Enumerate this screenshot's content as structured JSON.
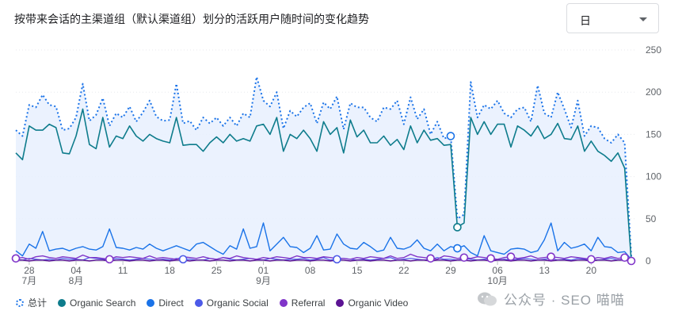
{
  "header": {
    "title": "按带来会话的主渠道组（默认渠道组）划分的活跃用户随时间的变化趋势",
    "granularity": "日"
  },
  "watermark": "公众号 · SEO 喵喵",
  "chart_data": {
    "type": "line",
    "ylim": [
      0,
      250
    ],
    "yticks": [
      "250",
      "200",
      "150",
      "100",
      "50",
      "0"
    ],
    "xticks": [
      {
        "i": 2,
        "label": "28",
        "sub": "7月"
      },
      {
        "i": 9,
        "label": "04",
        "sub": "8月"
      },
      {
        "i": 16,
        "label": "11",
        "sub": ""
      },
      {
        "i": 23,
        "label": "18",
        "sub": ""
      },
      {
        "i": 30,
        "label": "25",
        "sub": ""
      },
      {
        "i": 37,
        "label": "01",
        "sub": "9月"
      },
      {
        "i": 44,
        "label": "08",
        "sub": ""
      },
      {
        "i": 51,
        "label": "15",
        "sub": ""
      },
      {
        "i": 58,
        "label": "22",
        "sub": ""
      },
      {
        "i": 65,
        "label": "29",
        "sub": ""
      },
      {
        "i": 72,
        "label": "06",
        "sub": "10月"
      },
      {
        "i": 79,
        "label": "13",
        "sub": ""
      },
      {
        "i": 86,
        "label": "20",
        "sub": ""
      }
    ],
    "series": [
      {
        "name": "总计",
        "color": "#1a73e8",
        "dashed": true,
        "fill": true,
        "values": [
          155,
          148,
          185,
          182,
          197,
          185,
          183,
          155,
          157,
          170,
          210,
          166,
          173,
          193,
          160,
          175,
          170,
          183,
          165,
          176,
          190,
          171,
          166,
          167,
          210,
          163,
          166,
          155,
          170,
          163,
          170,
          160,
          170,
          160,
          175,
          170,
          218,
          190,
          183,
          200,
          157,
          178,
          171,
          182,
          187,
          163,
          188,
          180,
          195,
          156,
          187,
          182,
          182,
          170,
          165,
          182,
          180,
          190,
          162,
          194,
          168,
          180,
          150,
          165,
          145,
          148,
          50,
          55,
          212,
          170,
          185,
          180,
          190,
          175,
          170,
          180,
          182,
          165,
          208,
          175,
          170,
          200,
          180,
          158,
          190,
          148,
          160,
          158,
          145,
          140,
          150,
          140,
          5
        ]
      },
      {
        "name": "Organic Search",
        "color": "#0e7c8c",
        "width": 1.6,
        "values": [
          128,
          120,
          160,
          155,
          155,
          162,
          158,
          128,
          127,
          148,
          180,
          138,
          133,
          170,
          135,
          148,
          145,
          160,
          148,
          142,
          150,
          145,
          142,
          140,
          170,
          137,
          138,
          138,
          130,
          140,
          147,
          140,
          150,
          142,
          145,
          142,
          160,
          162,
          150,
          170,
          130,
          150,
          145,
          155,
          145,
          130,
          165,
          150,
          158,
          128,
          167,
          147,
          155,
          140,
          140,
          148,
          137,
          144,
          132,
          160,
          140,
          155,
          143,
          145,
          137,
          138,
          40,
          45,
          170,
          150,
          165,
          150,
          162,
          162,
          135,
          160,
          155,
          148,
          160,
          145,
          150,
          163,
          145,
          144,
          160,
          130,
          142,
          130,
          125,
          118,
          128,
          110,
          0
        ]
      },
      {
        "name": "Direct",
        "color": "#1a73e8",
        "width": 1.4,
        "values": [
          12,
          6,
          20,
          15,
          35,
          12,
          14,
          15,
          12,
          15,
          17,
          14,
          13,
          17,
          38,
          16,
          15,
          13,
          16,
          14,
          20,
          15,
          12,
          15,
          18,
          15,
          12,
          20,
          22,
          17,
          12,
          8,
          18,
          14,
          38,
          15,
          17,
          45,
          12,
          20,
          28,
          17,
          16,
          10,
          15,
          30,
          13,
          14,
          32,
          20,
          15,
          14,
          22,
          17,
          11,
          13,
          28,
          15,
          14,
          17,
          25,
          15,
          12,
          20,
          12,
          17,
          15,
          18,
          10,
          6,
          30,
          12,
          10,
          8,
          14,
          15,
          14,
          10,
          12,
          25,
          45,
          12,
          22,
          15,
          17,
          20,
          12,
          28,
          17,
          16,
          10,
          11,
          2
        ]
      },
      {
        "name": "Organic Social",
        "color": "#4c5ae8",
        "width": 1.2,
        "values": [
          2,
          1,
          3,
          2,
          1,
          2,
          1,
          3,
          2,
          2,
          1,
          4,
          3,
          2,
          1,
          3,
          2,
          1,
          2,
          3,
          2,
          1,
          2,
          1,
          3,
          2,
          2,
          1,
          1,
          3,
          2,
          4,
          2,
          1,
          2,
          3,
          2,
          1,
          3,
          2,
          1,
          2,
          2,
          3,
          1,
          2,
          4,
          1,
          2,
          3,
          2,
          1,
          2,
          1,
          2,
          3,
          4,
          1,
          2,
          3,
          2,
          1,
          2,
          4,
          2,
          2,
          1,
          3,
          2,
          1,
          2,
          3,
          1,
          2,
          1,
          2,
          3,
          2,
          1,
          2,
          3,
          1,
          2,
          1,
          3,
          2,
          2,
          1,
          2,
          3,
          1,
          2,
          0
        ]
      },
      {
        "name": "Referral",
        "color": "#8035c9",
        "width": 1.4,
        "values": [
          3,
          4,
          2,
          5,
          6,
          4,
          3,
          5,
          4,
          3,
          7,
          4,
          4,
          3,
          2,
          5,
          4,
          5,
          4,
          3,
          6,
          3,
          4,
          3,
          2,
          5,
          4,
          3,
          5,
          3,
          2,
          4,
          3,
          6,
          4,
          3,
          2,
          4,
          3,
          5,
          4,
          3,
          6,
          4,
          4,
          3,
          5,
          4,
          3,
          3,
          2,
          4,
          3,
          5,
          4,
          3,
          6,
          3,
          4,
          8,
          5,
          4,
          3,
          2,
          6,
          5,
          3,
          4,
          3,
          5,
          4,
          3,
          2,
          4,
          5,
          3,
          4,
          6,
          3,
          4,
          5,
          4,
          3,
          5,
          4,
          3,
          2,
          4,
          3,
          5,
          3,
          4,
          0
        ]
      },
      {
        "name": "Organic Video",
        "color": "#5b1393",
        "width": 1.4,
        "values": [
          1,
          1,
          0,
          1,
          1,
          0,
          1,
          1,
          0,
          1,
          1,
          0,
          1,
          1,
          0,
          1,
          1,
          0,
          1,
          1,
          0,
          1,
          1,
          0,
          1,
          1,
          0,
          1,
          1,
          0,
          1,
          1,
          0,
          1,
          1,
          0,
          1,
          1,
          0,
          1,
          1,
          0,
          1,
          1,
          0,
          1,
          1,
          0,
          1,
          1,
          0,
          1,
          1,
          0,
          1,
          1,
          0,
          1,
          1,
          0,
          1,
          1,
          0,
          1,
          1,
          0,
          1,
          1,
          0,
          1,
          1,
          0,
          1,
          1,
          0,
          1,
          1,
          0,
          1,
          1,
          0,
          1,
          1,
          0,
          1,
          1,
          0,
          1,
          1,
          0,
          1,
          1,
          0
        ]
      }
    ],
    "markers": [
      {
        "series": 0,
        "i": 65
      },
      {
        "series": 1,
        "i": 66
      },
      {
        "series": 2,
        "i": 66
      },
      {
        "series": 4,
        "i": 0
      },
      {
        "series": 4,
        "i": 14
      },
      {
        "series": 3,
        "i": 25
      },
      {
        "series": 3,
        "i": 48
      },
      {
        "series": 4,
        "i": 62
      },
      {
        "series": 4,
        "i": 67
      },
      {
        "series": 4,
        "i": 71
      },
      {
        "series": 4,
        "i": 74
      },
      {
        "series": 4,
        "i": 80
      },
      {
        "series": 4,
        "i": 86
      },
      {
        "series": 4,
        "i": 91
      },
      {
        "series": 4,
        "i": 92
      }
    ]
  }
}
